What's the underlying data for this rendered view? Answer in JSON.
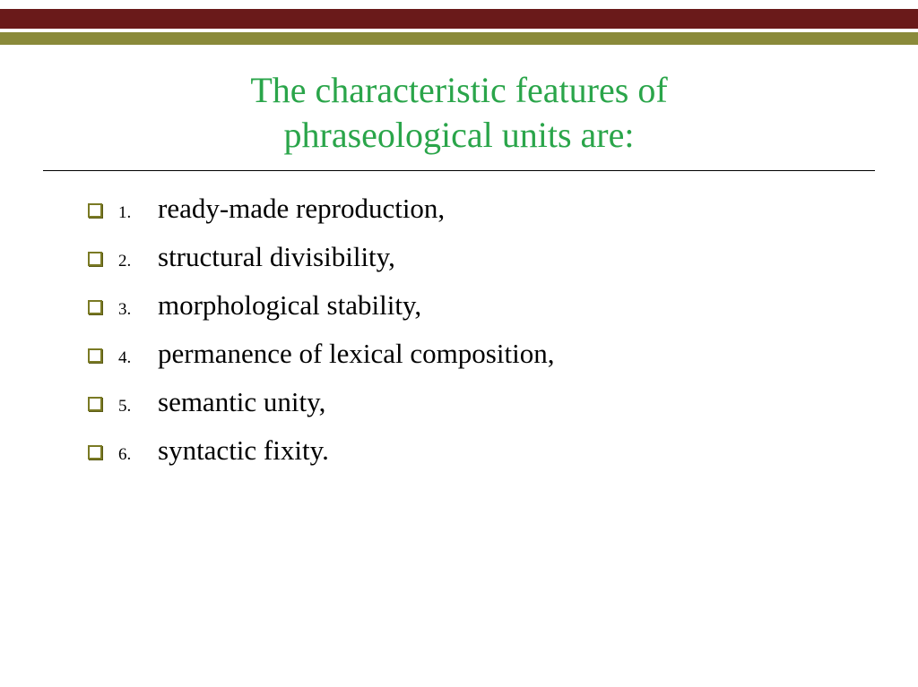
{
  "colors": {
    "maroon": "#6a1a1a",
    "olive": "#8a8a3a",
    "title": "#2aa54a",
    "marker_border": "#7a7a24",
    "marker_shadow": "#5a5a14"
  },
  "title_line1": "The characteristic features of",
  "title_line2": "phraseological units are:",
  "items": [
    {
      "n": "1.",
      "text": "ready-made reproduction,"
    },
    {
      "n": "2.",
      "text": "structural divisibility,"
    },
    {
      "n": "3.",
      "text": "morphological stability,"
    },
    {
      "n": "4.",
      "text": "permanence of lexical composition,"
    },
    {
      "n": "5.",
      "text": "semantic unity,"
    },
    {
      "n": "6.",
      "text": "syntactic fixity."
    }
  ],
  "title_fontsize": 40,
  "item_fontsize": 31,
  "num_fontsize": 19
}
